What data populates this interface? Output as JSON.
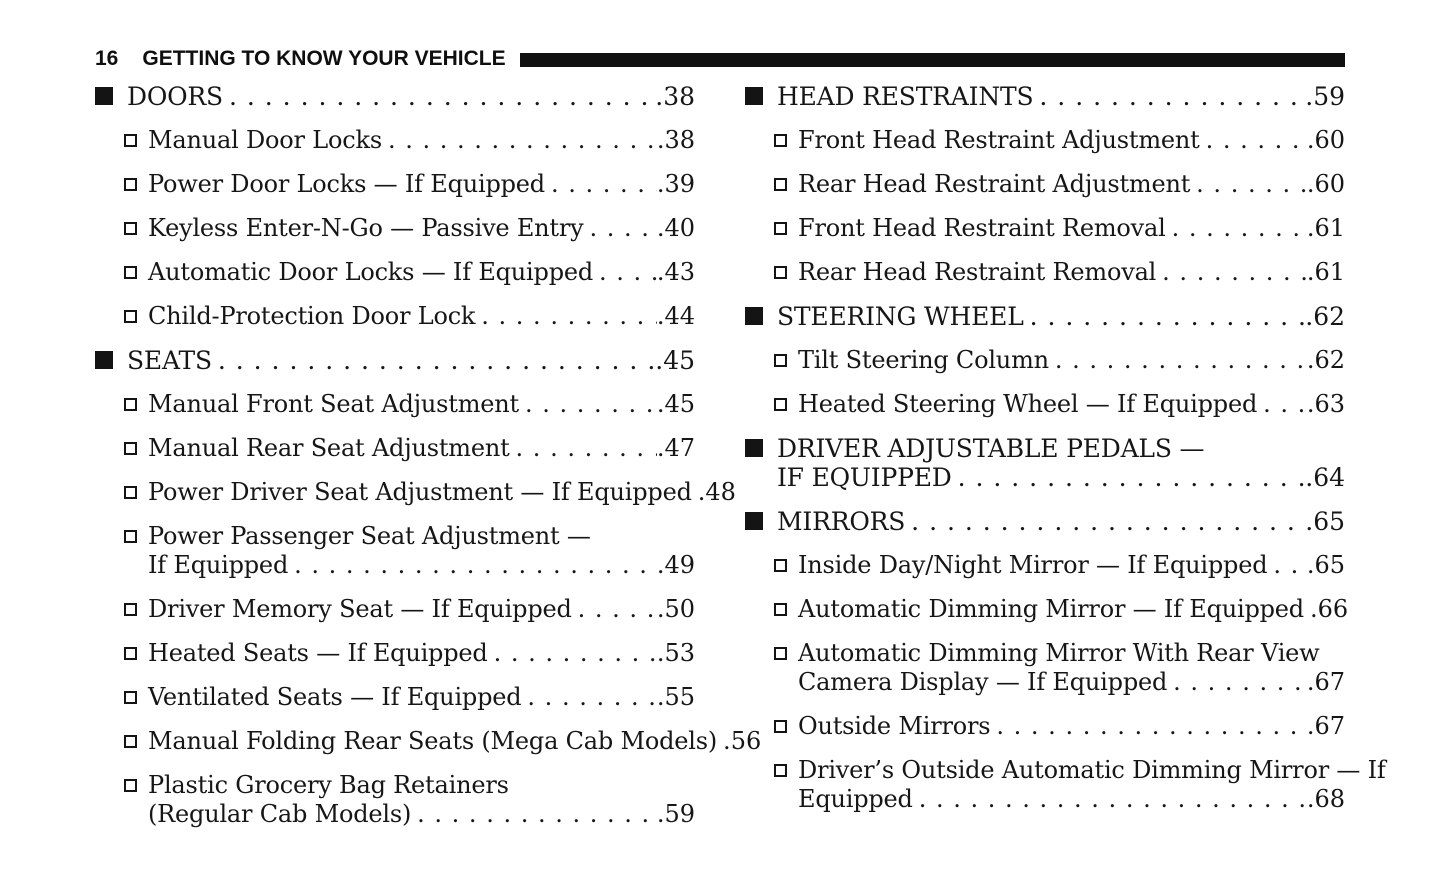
{
  "header": {
    "page_number": "16",
    "title": "GETTING TO KNOW YOUR VEHICLE"
  },
  "colors": {
    "ink": "#161616",
    "bar": "#111111"
  },
  "columns": [
    {
      "entries": [
        {
          "level": 1,
          "lines": [
            "DOORS"
          ],
          "page": "38"
        },
        {
          "level": 2,
          "lines": [
            "Manual Door Locks"
          ],
          "page": "38"
        },
        {
          "level": 2,
          "lines": [
            "Power Door Locks — If Equipped"
          ],
          "page": "39"
        },
        {
          "level": 2,
          "lines": [
            "Keyless Enter-N-Go — Passive Entry"
          ],
          "page": "40"
        },
        {
          "level": 2,
          "lines": [
            "Automatic Door Locks — If Equipped"
          ],
          "page": "43"
        },
        {
          "level": 2,
          "lines": [
            "Child-Protection Door Lock"
          ],
          "page": "44"
        },
        {
          "level": 1,
          "lines": [
            "SEATS"
          ],
          "page": "45"
        },
        {
          "level": 2,
          "lines": [
            "Manual Front Seat Adjustment"
          ],
          "page": "45"
        },
        {
          "level": 2,
          "lines": [
            "Manual Rear Seat Adjustment"
          ],
          "page": "47"
        },
        {
          "level": 2,
          "lines": [
            "Power Driver Seat Adjustment — If Equipped"
          ],
          "page": "48"
        },
        {
          "level": 2,
          "lines": [
            "Power Passenger Seat Adjustment —",
            "If Equipped"
          ],
          "page": "49"
        },
        {
          "level": 2,
          "lines": [
            "Driver Memory Seat — If Equipped"
          ],
          "page": "50"
        },
        {
          "level": 2,
          "lines": [
            "Heated Seats — If Equipped"
          ],
          "page": "53"
        },
        {
          "level": 2,
          "lines": [
            "Ventilated Seats — If Equipped"
          ],
          "page": "55"
        },
        {
          "level": 2,
          "lines": [
            "Manual Folding Rear Seats (Mega Cab Models)"
          ],
          "page": "56"
        },
        {
          "level": 2,
          "lines": [
            "Plastic Grocery Bag Retainers",
            "(Regular Cab Models)"
          ],
          "page": "59"
        }
      ]
    },
    {
      "entries": [
        {
          "level": 1,
          "lines": [
            "HEAD RESTRAINTS"
          ],
          "page": "59"
        },
        {
          "level": 2,
          "lines": [
            "Front Head Restraint Adjustment"
          ],
          "page": "60"
        },
        {
          "level": 2,
          "lines": [
            "Rear Head Restraint Adjustment"
          ],
          "page": "60"
        },
        {
          "level": 2,
          "lines": [
            "Front Head Restraint Removal"
          ],
          "page": "61"
        },
        {
          "level": 2,
          "lines": [
            "Rear Head Restraint Removal"
          ],
          "page": "61"
        },
        {
          "level": 1,
          "lines": [
            "STEERING WHEEL"
          ],
          "page": "62"
        },
        {
          "level": 2,
          "lines": [
            "Tilt Steering Column"
          ],
          "page": "62"
        },
        {
          "level": 2,
          "lines": [
            "Heated Steering Wheel — If Equipped"
          ],
          "page": "63"
        },
        {
          "level": 1,
          "lines": [
            "DRIVER ADJUSTABLE PEDALS —",
            "IF EQUIPPED"
          ],
          "page": "64"
        },
        {
          "level": 1,
          "lines": [
            "MIRRORS"
          ],
          "page": "65"
        },
        {
          "level": 2,
          "lines": [
            "Inside Day/Night Mirror — If Equipped"
          ],
          "page": "65"
        },
        {
          "level": 2,
          "lines": [
            "Automatic Dimming Mirror — If Equipped"
          ],
          "page": "66"
        },
        {
          "level": 2,
          "lines": [
            "Automatic Dimming Mirror With Rear View",
            "Camera Display — If Equipped"
          ],
          "page": "67"
        },
        {
          "level": 2,
          "lines": [
            "Outside Mirrors"
          ],
          "page": "67"
        },
        {
          "level": 2,
          "lines": [
            "Driver’s Outside Automatic Dimming Mirror — If",
            "Equipped"
          ],
          "page": "68"
        }
      ]
    }
  ]
}
